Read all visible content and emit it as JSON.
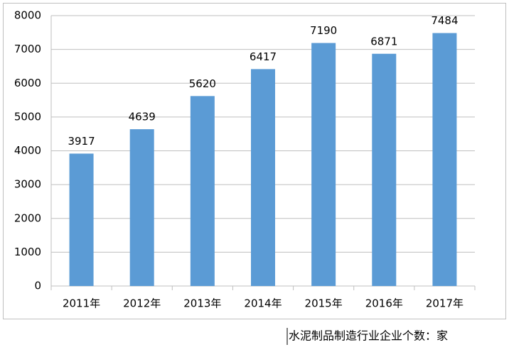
{
  "chart_data": {
    "type": "bar",
    "categories": [
      "2011年",
      "2012年",
      "2013年",
      "2014年",
      "2015年",
      "2016年",
      "2017年"
    ],
    "values": [
      3917,
      4639,
      5620,
      6417,
      7190,
      6871,
      7484
    ],
    "color": "#5b9bd5",
    "ylim": [
      0,
      8000
    ],
    "yticks": [
      0,
      1000,
      2000,
      3000,
      4000,
      5000,
      6000,
      7000,
      8000
    ],
    "grid": true,
    "data_labels": true
  },
  "caption": "水泥制品制造行业企业个数：家"
}
